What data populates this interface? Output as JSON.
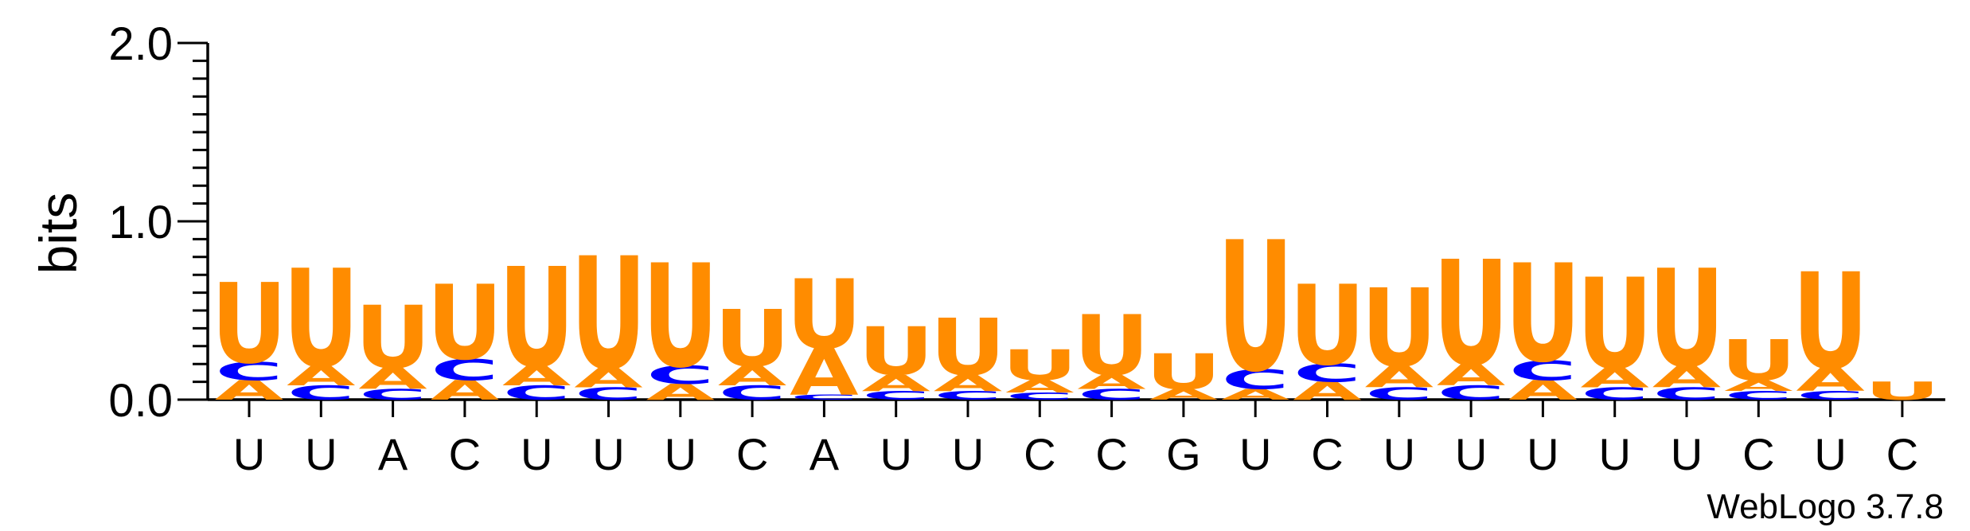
{
  "chart_data": {
    "type": "sequence-logo",
    "ylabel": "bits",
    "ylim": [
      0,
      2.0
    ],
    "y_ticks": [
      "0.0",
      "1.0",
      "2.0"
    ],
    "x_labels": [
      "U",
      "U",
      "A",
      "C",
      "U",
      "U",
      "U",
      "C",
      "A",
      "U",
      "U",
      "C",
      "C",
      "G",
      "U",
      "C",
      "U",
      "U",
      "U",
      "U",
      "U",
      "C",
      "U",
      "C"
    ],
    "colors": {
      "U": "#ff8c00",
      "A": "#ff8c00",
      "C": "#0000ff",
      "G": "#ff8c00"
    },
    "positions": [
      [
        {
          "l": "A",
          "h": 0.11
        },
        {
          "l": "C",
          "h": 0.1
        },
        {
          "l": "U",
          "h": 0.45
        }
      ],
      [
        {
          "l": "C",
          "h": 0.08
        },
        {
          "l": "A",
          "h": 0.11
        },
        {
          "l": "U",
          "h": 0.55
        }
      ],
      [
        {
          "l": "C",
          "h": 0.06
        },
        {
          "l": "A",
          "h": 0.12
        },
        {
          "l": "U",
          "h": 0.35
        }
      ],
      [
        {
          "l": "A",
          "h": 0.11
        },
        {
          "l": "C",
          "h": 0.12
        },
        {
          "l": "U",
          "h": 0.42
        }
      ],
      [
        {
          "l": "C",
          "h": 0.08
        },
        {
          "l": "A",
          "h": 0.11
        },
        {
          "l": "U",
          "h": 0.56
        }
      ],
      [
        {
          "l": "C",
          "h": 0.07
        },
        {
          "l": "A",
          "h": 0.11
        },
        {
          "l": "U",
          "h": 0.63
        }
      ],
      [
        {
          "l": "A",
          "h": 0.09
        },
        {
          "l": "C",
          "h": 0.1
        },
        {
          "l": "U",
          "h": 0.58
        }
      ],
      [
        {
          "l": "C",
          "h": 0.08
        },
        {
          "l": "A",
          "h": 0.11
        },
        {
          "l": "U",
          "h": 0.32
        }
      ],
      [
        {
          "l": "C",
          "h": 0.03
        },
        {
          "l": "A",
          "h": 0.26
        },
        {
          "l": "U",
          "h": 0.39
        }
      ],
      [
        {
          "l": "C",
          "h": 0.05
        },
        {
          "l": "A",
          "h": 0.09
        },
        {
          "l": "U",
          "h": 0.27
        }
      ],
      [
        {
          "l": "C",
          "h": 0.05
        },
        {
          "l": "A",
          "h": 0.09
        },
        {
          "l": "U",
          "h": 0.32
        }
      ],
      [
        {
          "l": "C",
          "h": 0.04
        },
        {
          "l": "A",
          "h": 0.07
        },
        {
          "l": "U",
          "h": 0.17
        }
      ],
      [
        {
          "l": "C",
          "h": 0.06
        },
        {
          "l": "A",
          "h": 0.08
        },
        {
          "l": "U",
          "h": 0.34
        }
      ],
      [
        {
          "l": "A",
          "h": 0.06
        },
        {
          "l": "U",
          "h": 0.2
        }
      ],
      [
        {
          "l": "A",
          "h": 0.06
        },
        {
          "l": "C",
          "h": 0.11
        },
        {
          "l": "U",
          "h": 0.73
        }
      ],
      [
        {
          "l": "A",
          "h": 0.1
        },
        {
          "l": "C",
          "h": 0.1
        },
        {
          "l": "U",
          "h": 0.45
        }
      ],
      [
        {
          "l": "C",
          "h": 0.07
        },
        {
          "l": "A",
          "h": 0.12
        },
        {
          "l": "U",
          "h": 0.44
        }
      ],
      [
        {
          "l": "C",
          "h": 0.08
        },
        {
          "l": "A",
          "h": 0.12
        },
        {
          "l": "U",
          "h": 0.59
        }
      ],
      [
        {
          "l": "A",
          "h": 0.11
        },
        {
          "l": "C",
          "h": 0.11
        },
        {
          "l": "U",
          "h": 0.55
        }
      ],
      [
        {
          "l": "C",
          "h": 0.07
        },
        {
          "l": "A",
          "h": 0.11
        },
        {
          "l": "U",
          "h": 0.51
        }
      ],
      [
        {
          "l": "C",
          "h": 0.07
        },
        {
          "l": "A",
          "h": 0.12
        },
        {
          "l": "U",
          "h": 0.55
        }
      ],
      [
        {
          "l": "C",
          "h": 0.05
        },
        {
          "l": "A",
          "h": 0.06
        },
        {
          "l": "U",
          "h": 0.23
        }
      ],
      [
        {
          "l": "C",
          "h": 0.05
        },
        {
          "l": "A",
          "h": 0.13
        },
        {
          "l": "U",
          "h": 0.54
        }
      ],
      [
        {
          "l": "U",
          "h": 0.1
        }
      ]
    ]
  },
  "footer": {
    "credit": "WebLogo 3.7.8"
  }
}
